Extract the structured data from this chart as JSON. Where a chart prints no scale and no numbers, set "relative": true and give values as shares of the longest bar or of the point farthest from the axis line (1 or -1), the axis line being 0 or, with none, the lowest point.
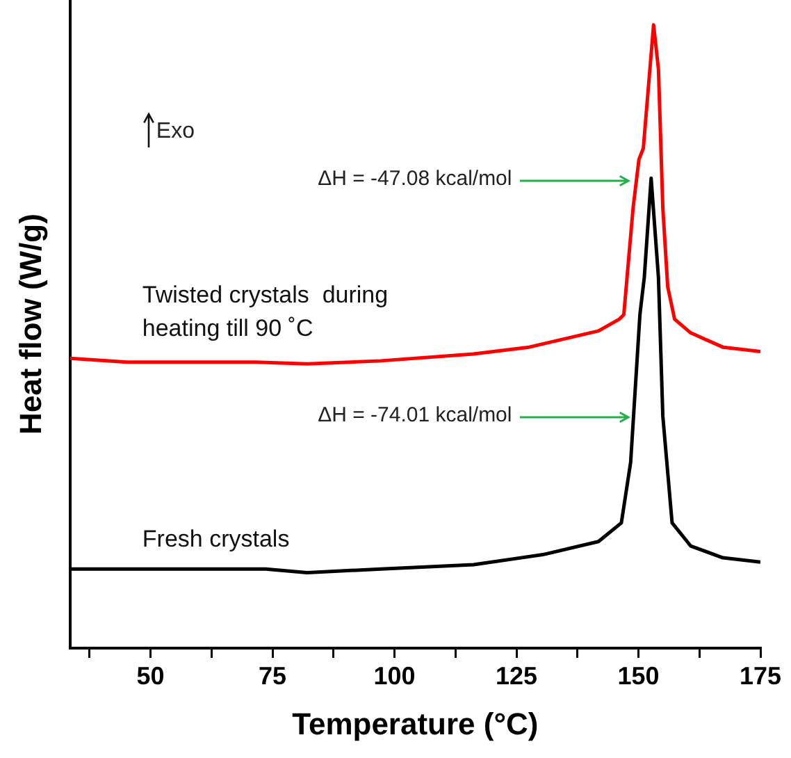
{
  "chart_data": {
    "type": "line",
    "relative": true,
    "xlabel": "Temperature (°C)",
    "ylabel": "Heat flow (W/g)",
    "xlim": [
      33.5,
      175
    ],
    "xticks": [
      {
        "value": 37.5,
        "label": null
      },
      50,
      {
        "value": 62.5,
        "label": null
      },
      75,
      {
        "value": 87.5,
        "label": null
      },
      100,
      {
        "value": 112.5,
        "label": null
      },
      125,
      {
        "value": 137.5,
        "label": null
      },
      150,
      {
        "value": 162.5,
        "label": null
      },
      175
    ],
    "grid": false,
    "legend": false,
    "marker": "none",
    "line_style": "solid",
    "series": [
      {
        "name": "Twisted crystals  during heating till 90 ˚C",
        "color": "#ff0000",
        "x": [
          33.5,
          45.2,
          71.6,
          82.1,
          97.2,
          116.2,
          127.6,
          141.8,
          146.1,
          147.0,
          148.9,
          150.1,
          151.0,
          153.1,
          154.1,
          155.0,
          156.0,
          157.4,
          160.7,
          167.3,
          175
        ],
        "values": [
          0.465,
          0.459,
          0.459,
          0.456,
          0.461,
          0.472,
          0.483,
          0.509,
          0.528,
          0.535,
          0.706,
          0.784,
          0.802,
          1.0,
          0.929,
          0.706,
          0.58,
          0.528,
          0.506,
          0.483,
          0.476
        ]
      },
      {
        "name": "Fresh crystals",
        "color": "#000000",
        "x": [
          33.5,
          73.6,
          82.1,
          97.2,
          116.2,
          130.4,
          141.8,
          146.5,
          148.4,
          150.3,
          151.2,
          152.6,
          154.1,
          155.0,
          156.9,
          160.7,
          167.3,
          175
        ],
        "values": [
          0.127,
          0.127,
          0.121,
          0.127,
          0.134,
          0.15,
          0.171,
          0.201,
          0.298,
          0.535,
          0.595,
          0.754,
          0.595,
          0.372,
          0.201,
          0.164,
          0.145,
          0.138
        ]
      }
    ],
    "annotations": [
      "Exo",
      {
        "text": "ΔH = -47.08 kcal/mol",
        "x": 148,
        "y": 0.75
      },
      {
        "text": "ΔH = -74.01 kcal/mol",
        "x": 148,
        "y": 0.37
      }
    ]
  }
}
